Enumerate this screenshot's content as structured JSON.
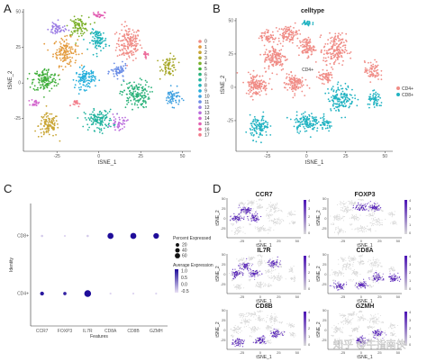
{
  "panels": [
    {
      "letter": "A",
      "chart_data": {
        "type": "scatter",
        "title": "",
        "xlabel": "tSNE_1",
        "ylabel": "tSNE_2",
        "xlim": [
          -45,
          55
        ],
        "ylim": [
          -48,
          52
        ],
        "xticks": [
          -25,
          0,
          25,
          50
        ],
        "yticks": [
          -25,
          0,
          25,
          50
        ],
        "legend": {
          "position": "right",
          "entries": [
            "0",
            "1",
            "2",
            "3",
            "4",
            "5",
            "6",
            "7",
            "8",
            "9",
            "10",
            "11",
            "12",
            "13",
            "14",
            "15",
            "16",
            "17"
          ]
        },
        "colors": [
          "#f08c86",
          "#e39a3c",
          "#c9a534",
          "#a7a82a",
          "#7cb02a",
          "#3fae3a",
          "#2bb27a",
          "#22b39e",
          "#1eb3b9",
          "#23aedb",
          "#3d9fe0",
          "#6b8ee6",
          "#9a7be4",
          "#b96bdc",
          "#d263cc",
          "#e25fb3",
          "#ec6898",
          "#f27a88"
        ],
        "clusters": [
          {
            "id": "0",
            "x": 18,
            "y": 28,
            "sx": 6,
            "sy": 10,
            "n": 170
          },
          {
            "id": "1",
            "x": -20,
            "y": 22,
            "sx": 6,
            "sy": 8,
            "n": 140
          },
          {
            "id": "2",
            "x": -30,
            "y": -30,
            "sx": 5,
            "sy": 7,
            "n": 110
          },
          {
            "id": "3",
            "x": 42,
            "y": 12,
            "sx": 4,
            "sy": 6,
            "n": 70
          },
          {
            "id": "4",
            "x": -12,
            "y": 40,
            "sx": 5,
            "sy": 5,
            "n": 90
          },
          {
            "id": "5",
            "x": -32,
            "y": 2,
            "sx": 6,
            "sy": 7,
            "n": 140
          },
          {
            "id": "6",
            "x": 22,
            "y": -8,
            "sx": 7,
            "sy": 8,
            "n": 150
          },
          {
            "id": "7",
            "x": 0,
            "y": -26,
            "sx": 7,
            "sy": 6,
            "n": 130
          },
          {
            "id": "8",
            "x": 0,
            "y": 30,
            "sx": 4,
            "sy": 6,
            "n": 90
          },
          {
            "id": "9",
            "x": -8,
            "y": 3,
            "sx": 5,
            "sy": 6,
            "n": 110
          },
          {
            "id": "10",
            "x": 44,
            "y": -10,
            "sx": 4,
            "sy": 5,
            "n": 60
          },
          {
            "id": "11",
            "x": 12,
            "y": 8,
            "sx": 4,
            "sy": 4,
            "n": 60
          },
          {
            "id": "12",
            "x": -25,
            "y": 38,
            "sx": 4,
            "sy": 4,
            "n": 50
          },
          {
            "id": "13",
            "x": 12,
            "y": -28,
            "sx": 4,
            "sy": 4,
            "n": 40
          },
          {
            "id": "14",
            "x": -38,
            "y": -14,
            "sx": 2,
            "sy": 2,
            "n": 20
          },
          {
            "id": "15",
            "x": 0,
            "y": 48,
            "sx": 3,
            "sy": 2,
            "n": 30
          },
          {
            "id": "16",
            "x": 28,
            "y": 20,
            "sx": 2,
            "sy": 2,
            "n": 15
          },
          {
            "id": "17",
            "x": -14,
            "y": -14,
            "sx": 2,
            "sy": 2,
            "n": 15
          }
        ]
      }
    },
    {
      "letter": "B",
      "chart_data": {
        "type": "scatter",
        "title": "celltype",
        "xlabel": "tSNE_1",
        "ylabel": "tSNE_2",
        "xlim": [
          -45,
          55
        ],
        "ylim": [
          -48,
          52
        ],
        "xticks": [
          -25,
          0,
          25,
          50
        ],
        "yticks": [
          -25,
          0,
          25,
          50
        ],
        "annotation": "CD4+",
        "legend": {
          "position": "right",
          "entries": [
            "CD4+",
            "CD8+"
          ]
        },
        "colors": [
          "#f08c86",
          "#22b3c2"
        ],
        "groups": [
          {
            "name": "CD4+",
            "clusters": [
              {
                "x": 18,
                "y": 28,
                "sx": 6,
                "sy": 10,
                "n": 170
              },
              {
                "x": -20,
                "y": 22,
                "sx": 6,
                "sy": 8,
                "n": 140
              },
              {
                "x": -32,
                "y": 2,
                "sx": 6,
                "sy": 7,
                "n": 140
              },
              {
                "x": -12,
                "y": 40,
                "sx": 5,
                "sy": 5,
                "n": 90
              },
              {
                "x": 0,
                "y": 30,
                "sx": 4,
                "sy": 6,
                "n": 90
              },
              {
                "x": -8,
                "y": 3,
                "sx": 5,
                "sy": 6,
                "n": 110
              },
              {
                "x": 12,
                "y": 8,
                "sx": 4,
                "sy": 4,
                "n": 60
              },
              {
                "x": 42,
                "y": 12,
                "sx": 4,
                "sy": 6,
                "n": 70
              },
              {
                "x": -25,
                "y": 38,
                "sx": 4,
                "sy": 4,
                "n": 50
              }
            ]
          },
          {
            "name": "CD8+",
            "clusters": [
              {
                "x": 22,
                "y": -8,
                "sx": 7,
                "sy": 8,
                "n": 150
              },
              {
                "x": 0,
                "y": -26,
                "sx": 7,
                "sy": 6,
                "n": 130
              },
              {
                "x": -30,
                "y": -30,
                "sx": 5,
                "sy": 7,
                "n": 110
              },
              {
                "x": 44,
                "y": -10,
                "sx": 4,
                "sy": 5,
                "n": 60
              },
              {
                "x": 12,
                "y": -28,
                "sx": 4,
                "sy": 4,
                "n": 40
              },
              {
                "x": 0,
                "y": 48,
                "sx": 3,
                "sy": 2,
                "n": 30
              }
            ]
          }
        ]
      }
    },
    {
      "letter": "C",
      "chart_data": {
        "type": "scatter",
        "title": "",
        "xlabel": "Features",
        "ylabel": "Identity",
        "categories": [
          "CCR7",
          "FOXP3",
          "IL7R",
          "CD8A",
          "CD8B",
          "GZMH"
        ],
        "identities": [
          "CD8+",
          "CD4+"
        ],
        "percent_expressed": [
          [
            2,
            1,
            2,
            30,
            30,
            25
          ],
          [
            10,
            6,
            40,
            1,
            1,
            1
          ]
        ],
        "average_expression": [
          [
            -0.8,
            -0.9,
            -0.8,
            1.0,
            1.0,
            1.0
          ],
          [
            0.9,
            0.8,
            1.0,
            -0.9,
            -0.9,
            -0.9
          ]
        ],
        "size_legend": {
          "title": "Percent Expressed",
          "entries": [
            20,
            40,
            60
          ]
        },
        "color_legend": {
          "title": "Average Expression",
          "ticks": [
            1.0,
            0.5,
            0.0,
            -0.5
          ]
        },
        "colors": {
          "low": "#e8e0f4",
          "high": "#1f0d9a"
        }
      }
    },
    {
      "letter": "D",
      "chart_data": {
        "type": "scatter",
        "xlabel": "tSNE_1",
        "ylabel": "tSNE_2",
        "xticks": [
          -25,
          0,
          25,
          50
        ],
        "yticks": [
          -25,
          0,
          25,
          50
        ],
        "colorbar_ticks": [
          4,
          3,
          2,
          1,
          0
        ],
        "colors": {
          "low": "#d9d9d9",
          "high": "#4b12b5"
        },
        "features": [
          {
            "name": "CCR7",
            "high_regions": [
              [
                -20,
                22
              ],
              [
                -32,
                2
              ],
              [
                -8,
                3
              ]
            ]
          },
          {
            "name": "FOXP3",
            "high_regions": [
              [
                18,
                28
              ],
              [
                0,
                30
              ]
            ]
          },
          {
            "name": "IL7R",
            "high_regions": [
              [
                -20,
                22
              ],
              [
                -32,
                2
              ],
              [
                18,
                28
              ],
              [
                -8,
                3
              ]
            ]
          },
          {
            "name": "CD8A",
            "high_regions": [
              [
                22,
                -8
              ],
              [
                0,
                -26
              ],
              [
                44,
                -10
              ],
              [
                -30,
                -30
              ]
            ]
          },
          {
            "name": "CD8B",
            "high_regions": [
              [
                22,
                -8
              ],
              [
                0,
                -26
              ],
              [
                -30,
                -30
              ]
            ]
          },
          {
            "name": "GZMH",
            "high_regions": [
              [
                22,
                -8
              ],
              [
                0,
                -26
              ]
            ]
          }
        ]
      }
    }
  ],
  "watermark": "知乎 @牛指南侠"
}
